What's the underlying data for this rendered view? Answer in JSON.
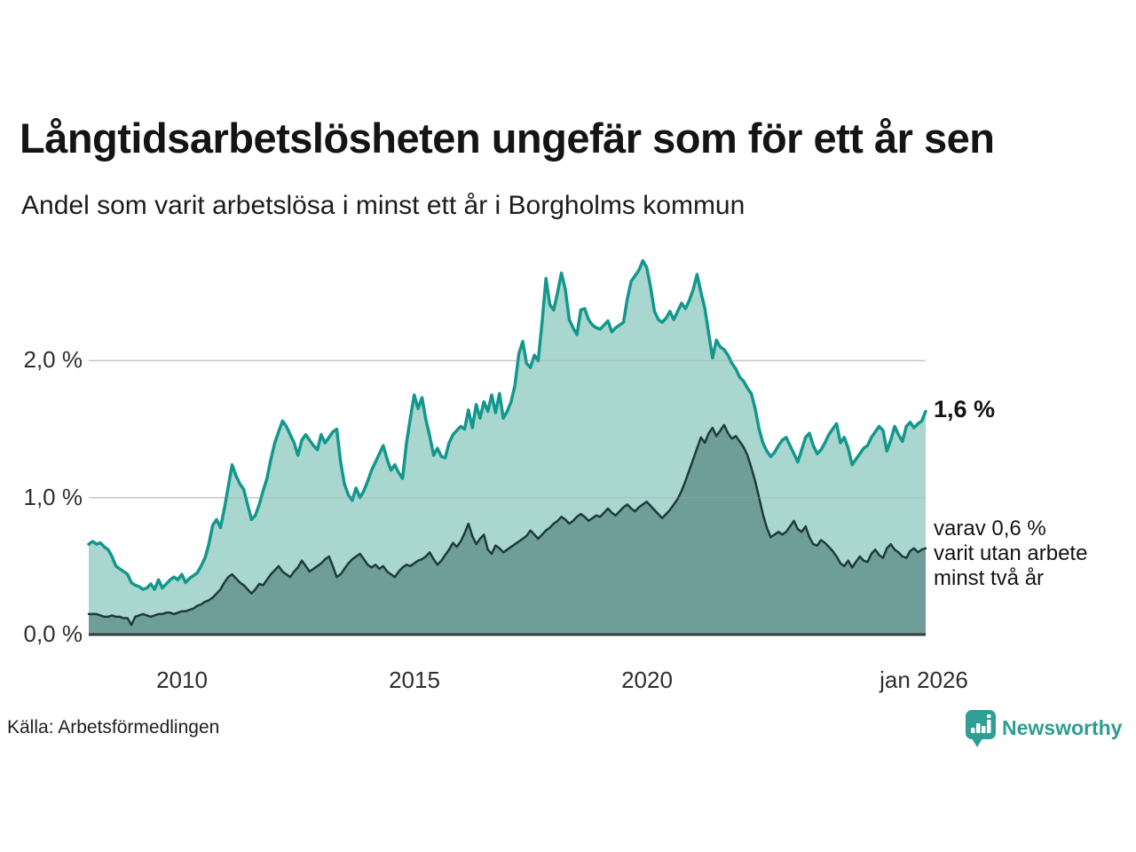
{
  "colors": {
    "background": "#ffffff",
    "gridline": "#d9d9d9",
    "baseline": "#323d3d",
    "text_primary": "#141414",
    "tick_text": "#2e2e2e",
    "brand_teal": "#2f9c90"
  },
  "footer": {
    "source": "Källa: Arbetsförmedlingen",
    "brand": "Newsworthy",
    "brand_icon": "speech-bubble-bar-chart-icon"
  },
  "chart_data": {
    "type": "area",
    "title": "Långtidsarbetslösheten ungefär som för ett år sen",
    "subtitle": "Andel som varit arbetslösa i minst ett år i Borgholms kommun",
    "xlabel": "",
    "ylabel": "",
    "grid": "horizontal",
    "legend": "direct-labels-right",
    "x_range": [
      2008,
      2026
    ],
    "y_range": [
      0,
      2.9
    ],
    "start_year": 2008,
    "step_years": 0.0833333333,
    "x_ticks": [
      {
        "label": "2010",
        "year": 2010
      },
      {
        "label": "2015",
        "year": 2015
      },
      {
        "label": "2020",
        "year": 2020
      },
      {
        "label": "jan 2026",
        "year": 2026
      }
    ],
    "y_ticks": [
      {
        "label": "2,0 %",
        "value": 2.0
      },
      {
        "label": "1,0 %",
        "value": 1.0
      },
      {
        "label": "0,0 %",
        "value": 0.0
      }
    ],
    "annotations": {
      "latest_total": "1,6 %",
      "secondary": "varav 0,6 %\nvarit utan arbete\nminst två år"
    },
    "series": [
      {
        "name": "Andel som varit arbetslösa i minst ett år",
        "color": "#13978d",
        "fill": "#a9d6cf",
        "line_width": 3.5,
        "end_value_pct": 1.6,
        "values": [
          0.66,
          0.68,
          0.66,
          0.67,
          0.64,
          0.62,
          0.57,
          0.5,
          0.48,
          0.46,
          0.44,
          0.38,
          0.36,
          0.35,
          0.33,
          0.34,
          0.37,
          0.33,
          0.4,
          0.34,
          0.37,
          0.4,
          0.42,
          0.4,
          0.44,
          0.38,
          0.41,
          0.43,
          0.45,
          0.5,
          0.56,
          0.66,
          0.8,
          0.84,
          0.78,
          0.92,
          1.08,
          1.24,
          1.16,
          1.1,
          1.06,
          0.95,
          0.84,
          0.87,
          0.95,
          1.05,
          1.14,
          1.28,
          1.4,
          1.48,
          1.56,
          1.52,
          1.46,
          1.4,
          1.31,
          1.42,
          1.46,
          1.42,
          1.38,
          1.35,
          1.46,
          1.4,
          1.44,
          1.48,
          1.5,
          1.26,
          1.1,
          1.02,
          0.98,
          1.07,
          1.0,
          1.05,
          1.12,
          1.2,
          1.26,
          1.32,
          1.38,
          1.28,
          1.2,
          1.24,
          1.18,
          1.14,
          1.4,
          1.58,
          1.75,
          1.65,
          1.73,
          1.57,
          1.45,
          1.31,
          1.36,
          1.3,
          1.29,
          1.4,
          1.46,
          1.49,
          1.52,
          1.5,
          1.64,
          1.51,
          1.68,
          1.58,
          1.7,
          1.63,
          1.75,
          1.62,
          1.76,
          1.58,
          1.63,
          1.7,
          1.82,
          2.05,
          2.14,
          1.98,
          1.95,
          2.04,
          2.0,
          2.28,
          2.6,
          2.41,
          2.37,
          2.5,
          2.64,
          2.52,
          2.3,
          2.24,
          2.19,
          2.37,
          2.38,
          2.3,
          2.26,
          2.24,
          2.23,
          2.26,
          2.29,
          2.21,
          2.24,
          2.26,
          2.28,
          2.45,
          2.58,
          2.62,
          2.66,
          2.73,
          2.68,
          2.54,
          2.36,
          2.3,
          2.28,
          2.31,
          2.36,
          2.3,
          2.36,
          2.42,
          2.38,
          2.44,
          2.52,
          2.63,
          2.5,
          2.38,
          2.2,
          2.02,
          2.15,
          2.1,
          2.08,
          2.04,
          1.98,
          1.94,
          1.88,
          1.85,
          1.8,
          1.76,
          1.65,
          1.5,
          1.4,
          1.34,
          1.3,
          1.33,
          1.38,
          1.42,
          1.44,
          1.38,
          1.32,
          1.26,
          1.35,
          1.44,
          1.47,
          1.38,
          1.32,
          1.35,
          1.4,
          1.46,
          1.5,
          1.54,
          1.4,
          1.44,
          1.36,
          1.24,
          1.28,
          1.32,
          1.36,
          1.38,
          1.44,
          1.48,
          1.52,
          1.49,
          1.34,
          1.42,
          1.52,
          1.46,
          1.41,
          1.52,
          1.55,
          1.51,
          1.54,
          1.56,
          1.63
        ]
      },
      {
        "name": "varav arbetslösa minst två år",
        "color": "#1e3b3b",
        "fill": "#6f9e98",
        "line_width": 2.5,
        "end_value_pct": 0.6,
        "values": [
          0.15,
          0.15,
          0.15,
          0.14,
          0.13,
          0.13,
          0.14,
          0.13,
          0.13,
          0.12,
          0.12,
          0.07,
          0.13,
          0.14,
          0.15,
          0.14,
          0.13,
          0.14,
          0.15,
          0.15,
          0.16,
          0.16,
          0.15,
          0.16,
          0.17,
          0.17,
          0.18,
          0.19,
          0.21,
          0.22,
          0.24,
          0.25,
          0.27,
          0.3,
          0.33,
          0.38,
          0.42,
          0.44,
          0.41,
          0.38,
          0.36,
          0.33,
          0.3,
          0.33,
          0.37,
          0.36,
          0.4,
          0.44,
          0.47,
          0.5,
          0.46,
          0.44,
          0.42,
          0.46,
          0.49,
          0.54,
          0.5,
          0.46,
          0.48,
          0.5,
          0.52,
          0.55,
          0.57,
          0.5,
          0.42,
          0.44,
          0.48,
          0.52,
          0.55,
          0.57,
          0.59,
          0.55,
          0.51,
          0.49,
          0.51,
          0.48,
          0.5,
          0.46,
          0.44,
          0.42,
          0.46,
          0.49,
          0.51,
          0.5,
          0.52,
          0.54,
          0.55,
          0.57,
          0.6,
          0.55,
          0.51,
          0.54,
          0.58,
          0.62,
          0.67,
          0.64,
          0.68,
          0.74,
          0.81,
          0.72,
          0.66,
          0.7,
          0.73,
          0.62,
          0.59,
          0.65,
          0.63,
          0.6,
          0.62,
          0.64,
          0.66,
          0.68,
          0.7,
          0.72,
          0.76,
          0.73,
          0.7,
          0.73,
          0.76,
          0.78,
          0.81,
          0.83,
          0.86,
          0.84,
          0.81,
          0.83,
          0.86,
          0.88,
          0.86,
          0.83,
          0.85,
          0.87,
          0.86,
          0.89,
          0.92,
          0.89,
          0.87,
          0.9,
          0.93,
          0.95,
          0.92,
          0.9,
          0.93,
          0.95,
          0.97,
          0.94,
          0.91,
          0.88,
          0.85,
          0.88,
          0.91,
          0.95,
          0.99,
          1.05,
          1.12,
          1.2,
          1.28,
          1.36,
          1.44,
          1.4,
          1.47,
          1.51,
          1.45,
          1.49,
          1.53,
          1.47,
          1.43,
          1.45,
          1.41,
          1.37,
          1.31,
          1.22,
          1.12,
          1.0,
          0.88,
          0.78,
          0.71,
          0.73,
          0.75,
          0.73,
          0.75,
          0.79,
          0.83,
          0.77,
          0.75,
          0.79,
          0.71,
          0.66,
          0.65,
          0.69,
          0.67,
          0.64,
          0.61,
          0.57,
          0.52,
          0.5,
          0.54,
          0.49,
          0.53,
          0.57,
          0.54,
          0.53,
          0.59,
          0.62,
          0.58,
          0.56,
          0.63,
          0.66,
          0.62,
          0.6,
          0.57,
          0.56,
          0.61,
          0.63,
          0.6,
          0.62,
          0.63
        ]
      }
    ]
  }
}
